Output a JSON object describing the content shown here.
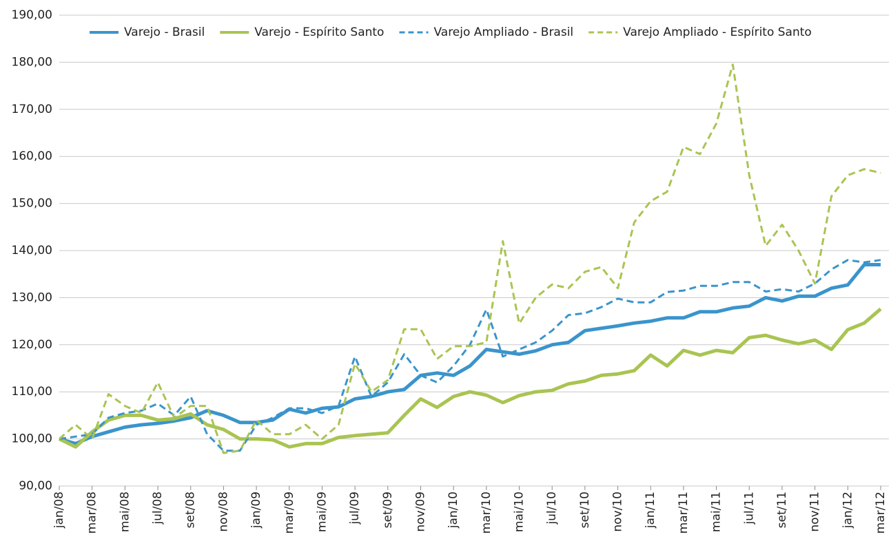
{
  "chart_data": {
    "type": "line",
    "categories": [
      "jan/08",
      null,
      "mar/08",
      null,
      "mai/08",
      null,
      "jul/08",
      null,
      "set/08",
      null,
      "nov/08",
      null,
      "jan/09",
      null,
      "mar/09",
      null,
      "mai/09",
      null,
      "jul/09",
      null,
      "set/09",
      null,
      "nov/09",
      null,
      "jan/10",
      null,
      "mar/10",
      null,
      "mai/10",
      null,
      "jul/10",
      null,
      "set/10",
      null,
      "nov/10",
      null,
      "jan/11",
      null,
      "mar/11",
      null,
      "mai/11",
      null,
      "jul/11",
      null,
      "set/11",
      null,
      "nov/11",
      null,
      "jan/12",
      null,
      "mar/12"
    ],
    "series": [
      {
        "name": "Varejo - Brasil",
        "color": "#3a94cc",
        "dashed": false,
        "values": [
          100,
          99,
          100.5,
          101.5,
          102.5,
          103,
          103.3,
          103.8,
          104.5,
          106,
          105,
          103.5,
          103.5,
          104,
          106.3,
          105.5,
          106.5,
          106.8,
          108.5,
          109,
          110,
          110.5,
          113.5,
          114,
          113.5,
          115.5,
          119,
          118.5,
          118,
          118.7,
          120,
          120.5,
          123,
          123.5,
          124,
          124.6,
          125,
          125.7,
          125.7,
          127,
          127,
          127.8,
          128.2,
          130,
          129.3,
          130.3,
          130.3,
          132,
          132.7,
          137,
          137
        ]
      },
      {
        "name": "Varejo - Espírito Santo",
        "color": "#a9c452",
        "dashed": false,
        "values": [
          100,
          98.3,
          101.5,
          104,
          105,
          105,
          104,
          104.3,
          105.3,
          103,
          102,
          100,
          100,
          99.8,
          98.3,
          99,
          99,
          100.3,
          100.7,
          101,
          101.3,
          105,
          108.5,
          106.7,
          109,
          110,
          109.3,
          107.7,
          109.2,
          110,
          110.3,
          111.7,
          112.3,
          113.5,
          113.8,
          114.5,
          117.8,
          115.5,
          118.8,
          117.8,
          118.8,
          118.3,
          121.5,
          122,
          121,
          120.2,
          121,
          119,
          123.2,
          124.6,
          127.6
        ]
      },
      {
        "name": "Varejo Ampliado - Brasil",
        "color": "#3a94cc",
        "dashed": true,
        "values": [
          100,
          100.5,
          101,
          104.5,
          105.5,
          106,
          107.5,
          105,
          109,
          101,
          97.5,
          97.5,
          103,
          104.5,
          106.5,
          106.5,
          105.5,
          107,
          117.5,
          109,
          112,
          118,
          113.5,
          112,
          115.5,
          120,
          127.5,
          117.5,
          119,
          120.5,
          123,
          126.3,
          126.7,
          128,
          129.8,
          129,
          129,
          131.2,
          131.5,
          132.5,
          132.5,
          133.3,
          133.3,
          131.3,
          131.8,
          131.3,
          133,
          136,
          138,
          137.5,
          138
        ]
      },
      {
        "name": "Varejo Ampliado - Espírito Santo",
        "color": "#a9c452",
        "dashed": true,
        "values": [
          100,
          103,
          100,
          109.5,
          107,
          105.5,
          112,
          104.5,
          107,
          107,
          97,
          97.5,
          104,
          101,
          101,
          103,
          100,
          103,
          116,
          110,
          112.5,
          123.3,
          123.3,
          117,
          119.7,
          119.7,
          120.5,
          142,
          124.5,
          130,
          132.8,
          132,
          135.5,
          136.5,
          132,
          146,
          150.5,
          152.5,
          162,
          160.5,
          167,
          179.5,
          156,
          141,
          145.5,
          140,
          133,
          151.5,
          156,
          157.3,
          156.5
        ]
      }
    ],
    "ylim": [
      90,
      190
    ],
    "yticks": [
      {
        "value": 90,
        "label": "90,00"
      },
      {
        "value": 100,
        "label": "100,00"
      },
      {
        "value": 110,
        "label": "110,00"
      },
      {
        "value": 120,
        "label": "120,00"
      },
      {
        "value": 130,
        "label": "130,00"
      },
      {
        "value": 140,
        "label": "140,00"
      },
      {
        "value": 150,
        "label": "150,00"
      },
      {
        "value": 160,
        "label": "160,00"
      },
      {
        "value": 170,
        "label": "170,00"
      },
      {
        "value": 180,
        "label": "180,00"
      },
      {
        "value": 190,
        "label": "190,00"
      }
    ],
    "grid": true,
    "legend": "top"
  }
}
